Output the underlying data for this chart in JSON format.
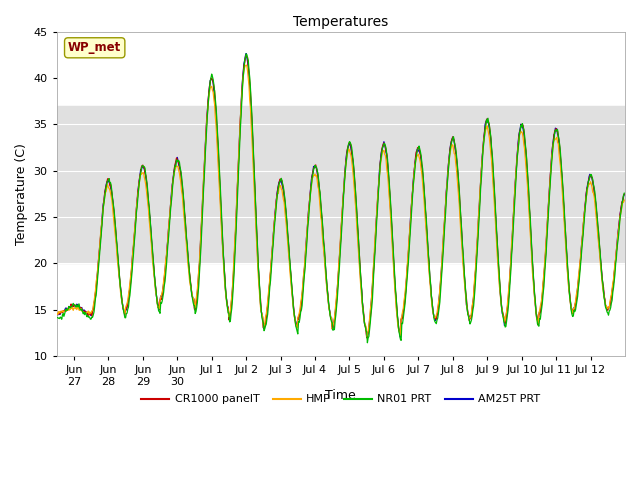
{
  "title": "Temperatures",
  "ylabel": "Temperature (C)",
  "xlabel": "Time",
  "ylim": [
    10,
    45
  ],
  "yticks": [
    10,
    15,
    20,
    25,
    30,
    35,
    40,
    45
  ],
  "legend_labels": [
    "CR1000 panelT",
    "HMP",
    "NR01 PRT",
    "AM25T PRT"
  ],
  "legend_colors": [
    "#cc0000",
    "#ffaa00",
    "#00bb00",
    "#0000cc"
  ],
  "annotation_text": "WP_met",
  "annotation_color": "#880000",
  "annotation_bg": "#ffffcc",
  "bg_band_ymin": 20,
  "bg_band_ymax": 37,
  "bg_band_color": "#e0e0e0",
  "tick_positions": [
    0.5,
    1.5,
    2.5,
    3.5,
    4.5,
    5.5,
    6.5,
    7.5,
    8.5,
    9.5,
    10.5,
    11.5,
    12.5,
    13.5,
    14.5,
    15.5
  ],
  "tick_labels": [
    "Jun\n27",
    "Jun\n28",
    "Jun\n29",
    "Jun\n30",
    "Jul 1",
    "Jul 2",
    "Jul 3",
    "Jul 4",
    "Jul 5",
    "Jul 6",
    "Jul 7",
    "Jul 8",
    "Jul 9",
    "Jul 10",
    "Jul 11",
    "Jul 12"
  ],
  "xlim": [
    0,
    16.5
  ],
  "day_maxes": [
    29.0,
    30.5,
    31.2,
    40.0,
    42.5,
    29.0,
    30.5,
    33.0,
    33.0,
    32.5,
    33.5,
    35.5,
    35.0,
    34.5,
    29.5,
    27.5
  ],
  "day_mins": [
    14.5,
    15.0,
    16.0,
    15.0,
    14.0,
    13.0,
    14.0,
    13.0,
    12.0,
    14.0,
    14.0,
    14.0,
    13.5,
    14.5,
    15.0,
    15.0
  ],
  "day_maxes_nr01_extra": [
    40.0,
    42.5
  ],
  "figsize": [
    6.4,
    4.8
  ],
  "dpi": 100
}
